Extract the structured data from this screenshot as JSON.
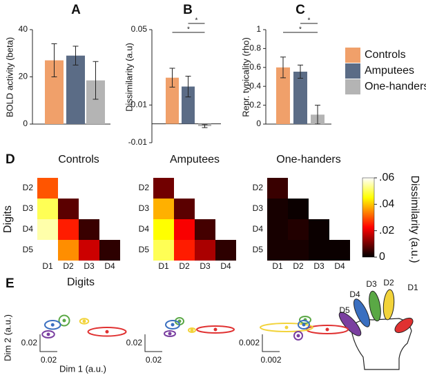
{
  "legend": [
    {
      "name": "Controls",
      "color": "#f0a06a"
    },
    {
      "name": "Amputees",
      "color": "#5b6c86"
    },
    {
      "name": "One-handers",
      "color": "#b4b4b4"
    }
  ],
  "digits": [
    {
      "label": "D1",
      "color": "#e03131"
    },
    {
      "label": "D2",
      "color": "#f2d33a"
    },
    {
      "label": "D3",
      "color": "#5aa845"
    },
    {
      "label": "D4",
      "color": "#3a6fc0"
    },
    {
      "label": "D5",
      "color": "#7a3fa0"
    }
  ],
  "chart_data": [
    {
      "type": "bar",
      "title": "A",
      "ylabel": "BOLD activity (beta)",
      "values": [
        27,
        29,
        18.5
      ],
      "errors": [
        7,
        4,
        8
      ],
      "ylim": [
        0,
        40
      ],
      "yticks": [
        0,
        20,
        40
      ]
    },
    {
      "type": "bar",
      "title": "B",
      "ylabel": "Dissimilarity (a.u)",
      "values": [
        0.0245,
        0.0198,
        -0.0012
      ],
      "errors": [
        0.005,
        0.0055,
        0.0008
      ],
      "ylim": [
        -0.01,
        0.05
      ],
      "yticks": [
        -0.01,
        0.01,
        0.05
      ],
      "annotations": [
        "*",
        "*"
      ]
    },
    {
      "type": "bar",
      "title": "C",
      "ylabel": "Repr. typicality (rho)",
      "values": [
        0.6,
        0.555,
        0.1
      ],
      "errors": [
        0.11,
        0.07,
        0.1
      ],
      "ylim": [
        0,
        1
      ],
      "yticks": [
        0,
        0.2,
        0.4,
        0.6,
        0.8,
        1
      ],
      "annotations": [
        "*",
        "*"
      ]
    },
    {
      "type": "heatmap",
      "panel": "D",
      "title": "Controls",
      "xlabel": "Digits",
      "ylabel": "Digits",
      "row_labels": [
        "D2",
        "D3",
        "D4",
        "D5"
      ],
      "col_labels": [
        "D1",
        "D2",
        "D3",
        "D4"
      ],
      "values": [
        [
          0.03
        ],
        [
          0.05,
          0.008
        ],
        [
          0.055,
          0.025,
          0.005
        ],
        [
          0.062,
          0.035,
          0.018,
          0.004
        ]
      ]
    },
    {
      "type": "heatmap",
      "title": "Amputees",
      "row_labels": [
        "D2",
        "D3",
        "D4",
        "D5"
      ],
      "col_labels": [
        "D1",
        "D2",
        "D3",
        "D4"
      ],
      "values": [
        [
          0.01
        ],
        [
          0.038,
          0.008
        ],
        [
          0.045,
          0.022,
          0.006
        ],
        [
          0.05,
          0.025,
          0.015,
          0.004
        ]
      ]
    },
    {
      "type": "heatmap",
      "title": "One-handers",
      "row_labels": [
        "D2",
        "D3",
        "D4",
        "D5"
      ],
      "col_labels": [
        "D1",
        "D2",
        "D3",
        "D4"
      ],
      "values": [
        [
          0.005
        ],
        [
          0.002,
          0.001
        ],
        [
          0.002,
          0.003,
          0.001
        ],
        [
          0.002,
          0.002,
          0.001,
          0.001
        ]
      ]
    },
    {
      "type": "colorbar",
      "label": "Dissimilarity (a.u.)",
      "lim": [
        0,
        0.06
      ],
      "ticks": [
        0,
        {
          "value": 0.02,
          "label": ".02"
        },
        {
          "value": 0.04,
          "label": ".04"
        },
        {
          "value": 0.06,
          "label": ".06"
        }
      ]
    },
    {
      "type": "mds",
      "panel": "E",
      "xlabel": "Dim 1 (a.u.)",
      "ylabel": "Dim 2 (a.u.)",
      "scale": 0.02,
      "points": [
        {
          "x": 0.036,
          "y": -0.005,
          "rx": 0.022,
          "ry": 0.005
        },
        {
          "x": 0.0096,
          "y": 0.0072,
          "rx": 0.005,
          "ry": 0.003
        },
        {
          "x": -0.0136,
          "y": 0.008,
          "rx": 0.006,
          "ry": 0.006
        },
        {
          "x": -0.027,
          "y": 0.003,
          "rx": 0.009,
          "ry": 0.005
        },
        {
          "x": -0.032,
          "y": -0.008,
          "rx": 0.007,
          "ry": 0.004
        }
      ]
    },
    {
      "type": "mds",
      "scale": 0.02,
      "points": [
        {
          "x": 0.04,
          "y": -0.0024,
          "rx": 0.0216,
          "ry": 0.004
        },
        {
          "x": 0.0128,
          "y": -0.0032,
          "rx": 0.004,
          "ry": 0.0024
        },
        {
          "x": -0.0016,
          "y": 0.0072,
          "rx": 0.0048,
          "ry": 0.004
        },
        {
          "x": -0.0096,
          "y": 0.0032,
          "rx": 0.008,
          "ry": 0.0048
        },
        {
          "x": -0.0128,
          "y": -0.0072,
          "rx": 0.0064,
          "ry": 0.0032
        }
      ]
    },
    {
      "type": "mds",
      "scale": 0.002,
      "points": [
        {
          "x": 0.00336,
          "y": -0.00024,
          "rx": 0.0024,
          "ry": 0.00048
        },
        {
          "x": -0.00136,
          "y": 0,
          "rx": 0.00304,
          "ry": 0.00048
        },
        {
          "x": 0.0008,
          "y": 0.00088,
          "rx": 0.00064,
          "ry": 0.0004
        },
        {
          "x": 0.00064,
          "y": 0.00032,
          "rx": 0.00064,
          "ry": 0.00048
        },
        {
          "x": 0,
          "y": -0.00096,
          "rx": 0.00048,
          "ry": 0.00048
        }
      ]
    }
  ]
}
